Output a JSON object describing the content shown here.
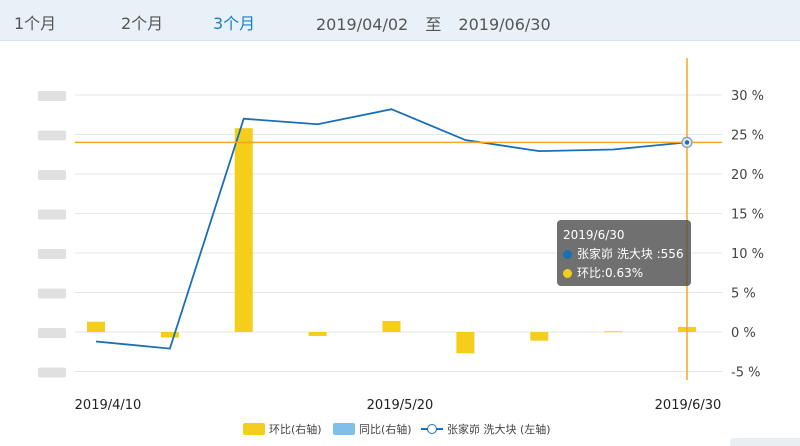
{
  "tabs": [
    {
      "label": "1个月",
      "active": false
    },
    {
      "label": "2个月",
      "active": false
    },
    {
      "label": "3个月",
      "active": true
    }
  ],
  "date_range": {
    "start": "2019/04/02",
    "separator": "至",
    "end": "2019/06/30"
  },
  "chart_data": {
    "type": "bar",
    "x_tick_labels": [
      "2019/4/10",
      "2019/5/20",
      "2019/6/30"
    ],
    "y_right_ticks": [
      "30 %",
      "25 %",
      "20 %",
      "15 %",
      "10 %",
      "5 %",
      "0 %",
      "-5 %"
    ],
    "ylim_right": [
      -5,
      30
    ],
    "series": [
      {
        "name": "环比(右轴)",
        "type": "bar",
        "color": "#f5ce1c",
        "values": [
          1.3,
          -0.7,
          25.8,
          -0.5,
          1.4,
          -2.7,
          -1.1,
          0.1,
          0.63
        ]
      },
      {
        "name": "同比(右轴)",
        "type": "bar",
        "color": "#7fbfea",
        "values": []
      },
      {
        "name": "张家峁 洗大块 (左轴)",
        "type": "line",
        "color": "#1a6fb5",
        "values_right_scale": [
          -1.2,
          -2.1,
          27.0,
          26.3,
          28.2,
          24.3,
          22.9,
          23.1,
          24.0
        ]
      }
    ],
    "crosshair_color": "#f5a623",
    "grid": true,
    "legend_position": "bottom"
  },
  "tooltip": {
    "date": "2019/6/30",
    "line_label": "张家峁 洗大块 :556",
    "bar_label": "环比:0.63%"
  }
}
